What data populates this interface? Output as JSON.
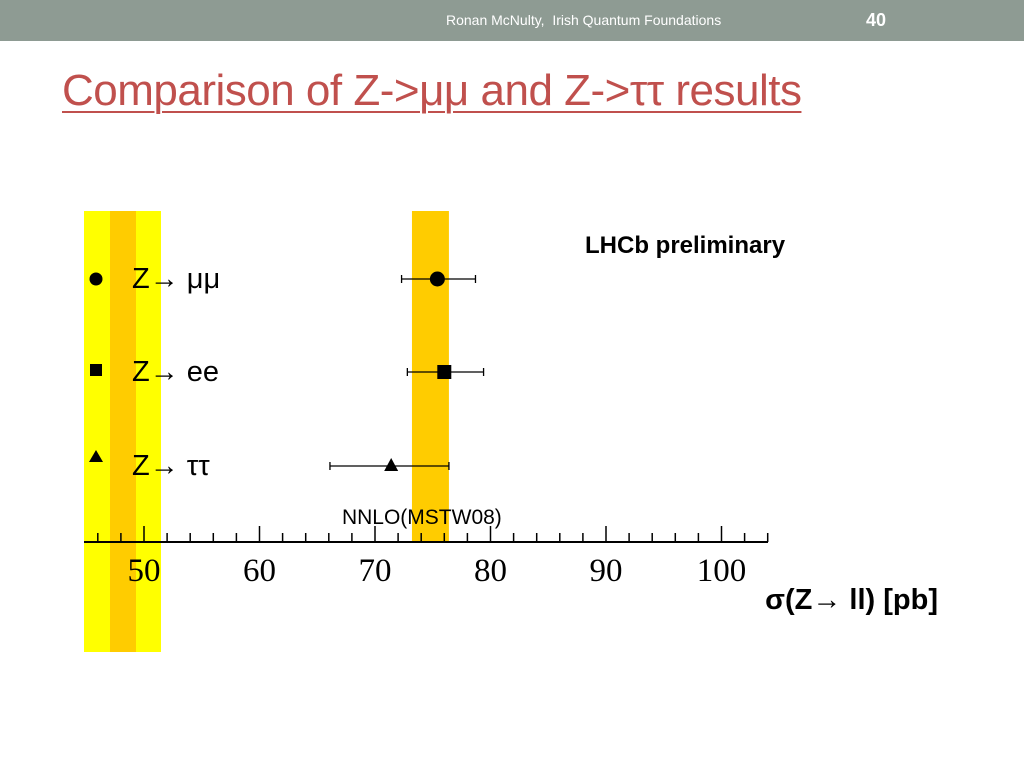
{
  "footer": {
    "author": "Ronan McNulty,  Irish Quantum Foundations",
    "page_number": "40"
  },
  "slide": {
    "title": "Comparison of Z->μμ and Z->ττ results"
  },
  "chart_data": {
    "type": "scatter",
    "title": "",
    "annotation": "LHCb preliminary",
    "xlabel": "σ(Z→ ll) [pb]",
    "ylabel": "",
    "xlim": [
      44,
      105
    ],
    "x_ticks": [
      "50",
      "60",
      "70",
      "80",
      "90",
      "100"
    ],
    "x_tick_values": [
      50,
      60,
      70,
      80,
      90,
      100
    ],
    "grid": false,
    "series": [
      {
        "name": "Z→ μμ",
        "marker": "circle",
        "value": 75.4,
        "err_low": 3.1,
        "err_high": 3.3
      },
      {
        "name": "Z→ ee",
        "marker": "square",
        "value": 76.0,
        "err_low": 3.2,
        "err_high": 3.4
      },
      {
        "name": "Z→ ττ",
        "marker": "triangle",
        "value": 71.4,
        "err_low": 5.3,
        "err_high": 5.0
      }
    ],
    "theory_band": {
      "label": "NNLO(MSTW08)",
      "low": 73.2,
      "high": 76.4
    },
    "colors": {
      "inner_band": "#ffcc00",
      "outer_band": "#ffff00",
      "markers": "#000000"
    }
  }
}
